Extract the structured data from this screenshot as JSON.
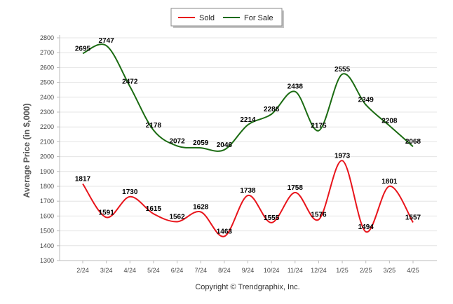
{
  "chart_data": {
    "type": "line",
    "categories": [
      "2/24",
      "3/24",
      "4/24",
      "5/24",
      "6/24",
      "7/24",
      "8/24",
      "9/24",
      "10/24",
      "11/24",
      "12/24",
      "1/25",
      "2/25",
      "3/25",
      "4/25"
    ],
    "series": [
      {
        "name": "Sold",
        "color": "#e8141b",
        "values": [
          1817,
          1591,
          1730,
          1615,
          1562,
          1628,
          1463,
          1738,
          1555,
          1758,
          1576,
          1973,
          1494,
          1801,
          1557
        ]
      },
      {
        "name": "For Sale",
        "color": "#1b6b12",
        "values": [
          2695,
          2747,
          2472,
          2178,
          2072,
          2059,
          2046,
          2214,
          2286,
          2438,
          2175,
          2555,
          2349,
          2208,
          2068
        ]
      }
    ],
    "ylabel": "Average Price (in $,000)",
    "ylim": [
      1300,
      2800
    ],
    "yticks": [
      1300,
      1400,
      1500,
      1600,
      1700,
      1800,
      1900,
      2000,
      2100,
      2200,
      2300,
      2400,
      2500,
      2600,
      2700,
      2800
    ],
    "grid": true,
    "legend": "top-center"
  },
  "footer": {
    "copyright": "Copyright © Trendgraphix, Inc."
  }
}
